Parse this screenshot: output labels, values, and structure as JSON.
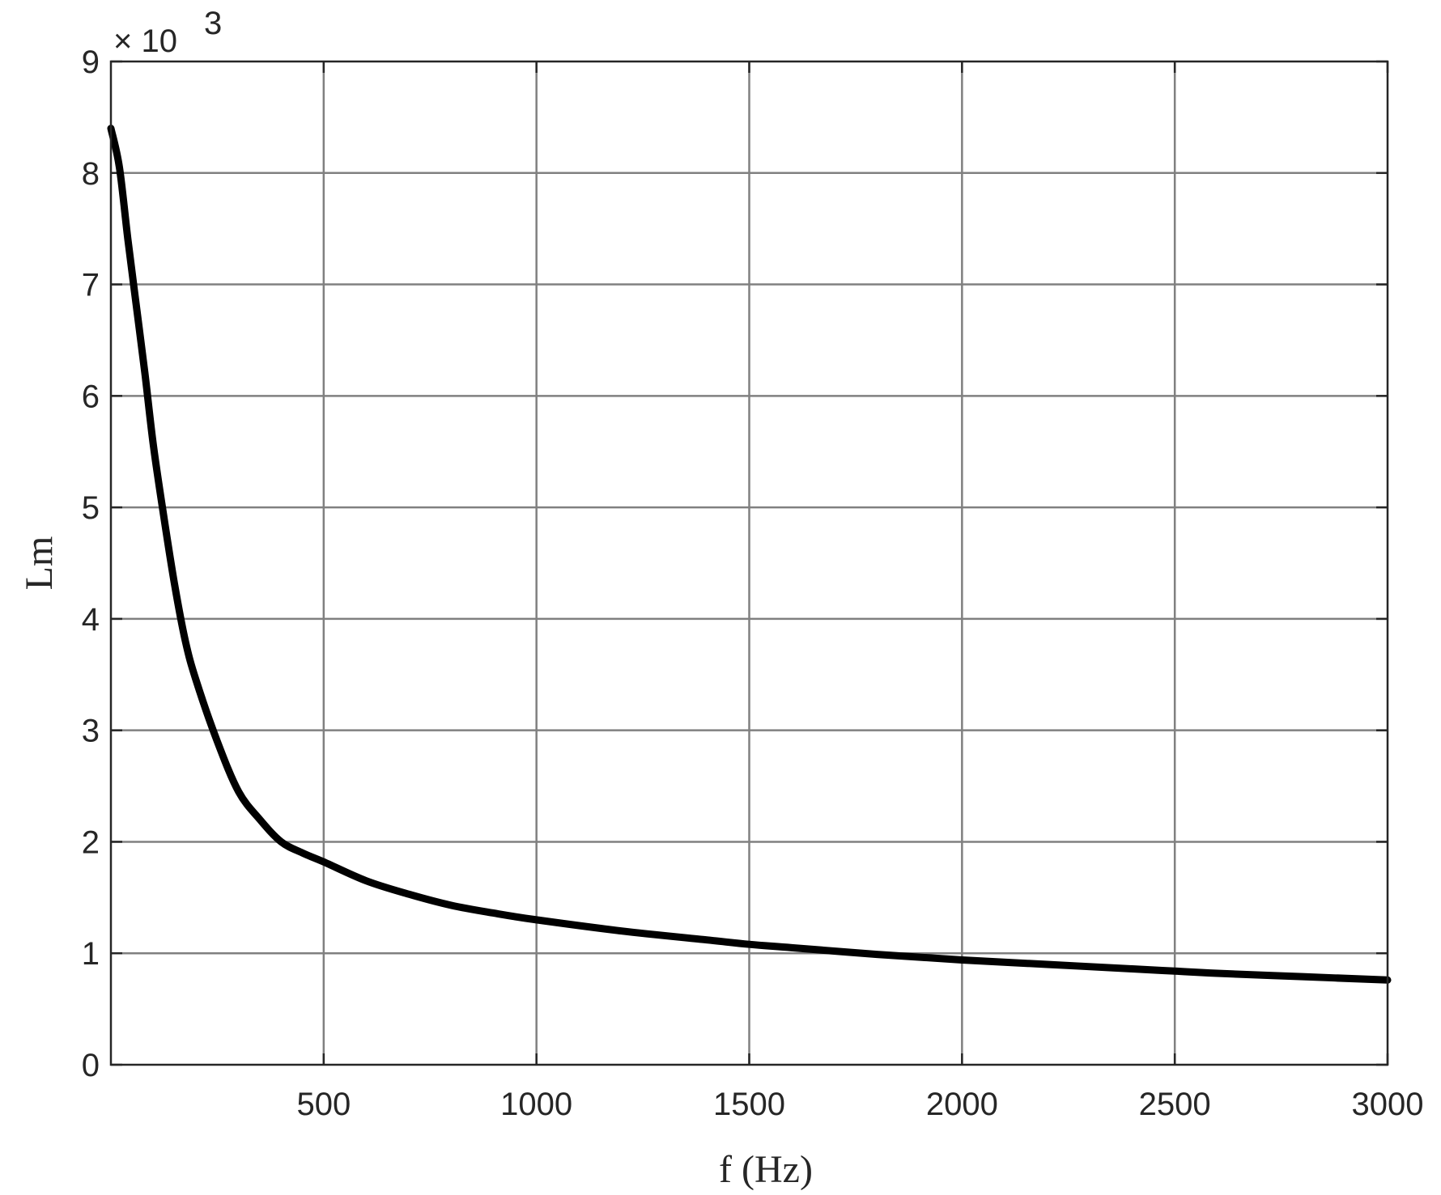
{
  "chart_data": {
    "type": "line",
    "xlabel": "f (Hz)",
    "ylabel": "Lm",
    "y_exponent": {
      "base": "× 10",
      "power": "3"
    },
    "xlim": [
      0,
      3000
    ],
    "ylim": [
      0,
      9
    ],
    "y_scale_factor": 1000,
    "x_ticks": [
      500,
      1000,
      1500,
      2000,
      2500,
      3000
    ],
    "x_tick_labels": [
      "500",
      "1000",
      "1500",
      "2000",
      "2500",
      "3000"
    ],
    "y_ticks": [
      0,
      1,
      2,
      3,
      4,
      5,
      6,
      7,
      8,
      9
    ],
    "y_tick_labels": [
      "0",
      "1",
      "2",
      "3",
      "4",
      "5",
      "6",
      "7",
      "8",
      "9"
    ],
    "grid": true,
    "series": [
      {
        "color": "#000000",
        "x": [
          0,
          20,
          40,
          60,
          80,
          100,
          125,
          150,
          175,
          200,
          250,
          300,
          350,
          400,
          450,
          500,
          600,
          700,
          800,
          900,
          1000,
          1200,
          1400,
          1500,
          1600,
          1800,
          2000,
          2200,
          2400,
          2500,
          2600,
          2800,
          3000
        ],
        "y": [
          8.4,
          8.05,
          7.4,
          6.8,
          6.2,
          5.55,
          4.9,
          4.3,
          3.8,
          3.45,
          2.9,
          2.45,
          2.2,
          2.0,
          1.9,
          1.82,
          1.65,
          1.53,
          1.43,
          1.36,
          1.3,
          1.2,
          1.12,
          1.08,
          1.05,
          0.99,
          0.94,
          0.9,
          0.86,
          0.84,
          0.82,
          0.79,
          0.76
        ]
      }
    ]
  }
}
